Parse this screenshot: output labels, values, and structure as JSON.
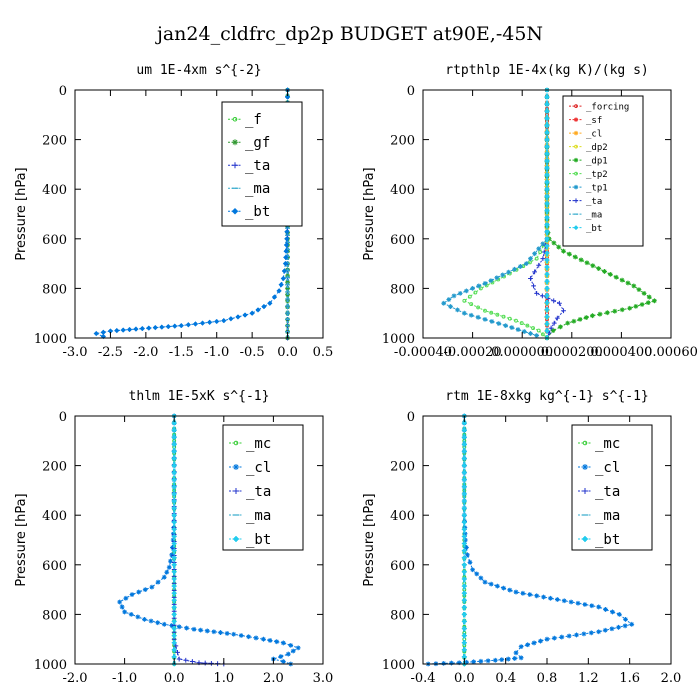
{
  "page": {
    "title": "jan24_cldfrc_dp2p  BUDGET at90E,-45N"
  },
  "chart_data": [
    {
      "type": "line",
      "title": "um   1E-4xm s^{-2}",
      "ylabel": "Pressure [hPa]",
      "xlim": [
        -3.0,
        0.5
      ],
      "ylim": [
        1000,
        0
      ],
      "xticks": [
        "-3.0",
        "-2.5",
        "-2.0",
        "-1.5",
        "-1.0",
        "-0.5",
        "0.0",
        "0.5"
      ],
      "yticks": [
        "0",
        "200",
        "400",
        "600",
        "800",
        "1000"
      ],
      "series": [
        {
          "name": "_f",
          "color": "#33cc33",
          "marker": "circle",
          "points": [
            [
              0,
              0
            ],
            [
              0,
              100
            ],
            [
              0,
              200
            ],
            [
              0,
              300
            ],
            [
              0,
              400
            ],
            [
              0,
              500
            ],
            [
              0,
              600
            ],
            [
              0,
              700
            ],
            [
              0,
              800
            ],
            [
              0,
              900
            ],
            [
              0,
              1000
            ]
          ]
        },
        {
          "name": "_gf",
          "color": "#339933",
          "marker": "star",
          "points": [
            [
              0,
              0
            ],
            [
              0,
              100
            ],
            [
              0,
              200
            ],
            [
              0,
              300
            ],
            [
              0,
              400
            ],
            [
              0,
              500
            ],
            [
              0,
              600
            ],
            [
              0,
              700
            ],
            [
              0,
              800
            ],
            [
              0,
              900
            ],
            [
              0,
              1000
            ]
          ]
        },
        {
          "name": "_ta",
          "color": "#2233cc",
          "marker": "plus",
          "points": [
            [
              0,
              0
            ],
            [
              0,
              500
            ],
            [
              0,
              900
            ],
            [
              0,
              1000
            ]
          ]
        },
        {
          "name": "_ma",
          "color": "#33aacc",
          "marker": "dash",
          "points": [
            [
              0,
              0
            ],
            [
              0,
              500
            ],
            [
              0,
              900
            ],
            [
              0,
              1000
            ]
          ]
        },
        {
          "name": "_bt",
          "color": "#0077dd",
          "marker": "diamond",
          "points": [
            [
              0,
              0
            ],
            [
              0,
              400
            ],
            [
              -0.01,
              600
            ],
            [
              -0.03,
              700
            ],
            [
              -0.06,
              760
            ],
            [
              -0.12,
              810
            ],
            [
              -0.25,
              860
            ],
            [
              -0.5,
              900
            ],
            [
              -0.9,
              930
            ],
            [
              -1.5,
              950
            ],
            [
              -2.05,
              962
            ],
            [
              -2.5,
              972
            ],
            [
              -2.7,
              982
            ],
            [
              -2.6,
              994
            ]
          ]
        }
      ]
    },
    {
      "type": "line",
      "title": "rtpthlp   1E-4x(kg K)/(kg s)",
      "ylabel": "Pressure [hPa]",
      "xlim": [
        -0.0006,
        0.0006
      ],
      "ylim": [
        1000,
        0
      ],
      "xticks": [
        "-0.00040",
        "-0.00020",
        "0.000000",
        "0.000200",
        "0.000400",
        "0.00060"
      ],
      "yticks": [
        "0",
        "200",
        "400",
        "600",
        "800",
        "1000"
      ],
      "series": [
        {
          "name": "_forcing",
          "color": "#dd2222",
          "marker": "circle",
          "points": [
            [
              0,
              0
            ],
            [
              0,
              100
            ],
            [
              0,
              200
            ],
            [
              0,
              300
            ],
            [
              0,
              400
            ],
            [
              0,
              500
            ],
            [
              0,
              600
            ],
            [
              0,
              700
            ],
            [
              0,
              800
            ],
            [
              0,
              900
            ],
            [
              0,
              1000
            ]
          ]
        },
        {
          "name": "_sf",
          "color": "#ee3333",
          "marker": "star",
          "points": [
            [
              0,
              0
            ],
            [
              0,
              500
            ],
            [
              0,
              1000
            ]
          ]
        },
        {
          "name": "_cl",
          "color": "#ffaa22",
          "marker": "star",
          "points": [
            [
              0,
              0
            ],
            [
              0,
              500
            ],
            [
              0,
              1000
            ]
          ]
        },
        {
          "name": "_dp2",
          "color": "#dddd22",
          "marker": "circle",
          "points": [
            [
              0,
              0
            ],
            [
              0,
              500
            ],
            [
              0,
              1000
            ]
          ]
        },
        {
          "name": "_dp1",
          "color": "#22aa22",
          "marker": "star",
          "points": [
            [
              0,
              0
            ],
            [
              0,
              550
            ],
            [
              1e-05,
              600
            ],
            [
              8e-05,
              650
            ],
            [
              0.00025,
              720
            ],
            [
              0.00042,
              790
            ],
            [
              0.00052,
              850
            ],
            [
              0.0004,
              880
            ],
            [
              0.00022,
              910
            ],
            [
              0.0001,
              940
            ],
            [
              3e-05,
              970
            ],
            [
              0,
              1000
            ]
          ]
        },
        {
          "name": "_tp2",
          "color": "#55dd55",
          "marker": "circle",
          "points": [
            [
              0,
              0
            ],
            [
              0,
              600
            ],
            [
              -5e-05,
              680
            ],
            [
              -0.00018,
              740
            ],
            [
              -0.00032,
              800
            ],
            [
              -0.0004,
              850
            ],
            [
              -0.0003,
              890
            ],
            [
              -0.00015,
              930
            ],
            [
              -4e-05,
              970
            ],
            [
              0,
              1000
            ]
          ]
        },
        {
          "name": "_tp1",
          "color": "#2299cc",
          "marker": "star",
          "points": [
            [
              0,
              0
            ],
            [
              0,
              600
            ],
            [
              -0.0001,
              700
            ],
            [
              -0.0003,
              780
            ],
            [
              -0.00045,
              830
            ],
            [
              -0.0005,
              860
            ],
            [
              -0.0004,
              900
            ],
            [
              -0.0002,
              950
            ],
            [
              -5e-05,
              990
            ]
          ]
        },
        {
          "name": "_ta",
          "color": "#2233cc",
          "marker": "plus",
          "points": [
            [
              0,
              0
            ],
            [
              0,
              600
            ],
            [
              -2e-05,
              680
            ],
            [
              -8e-05,
              760
            ],
            [
              -5e-05,
              820
            ],
            [
              6e-05,
              860
            ],
            [
              8e-05,
              890
            ],
            [
              5e-05,
              920
            ],
            [
              2e-05,
              960
            ],
            [
              0,
              1000
            ]
          ]
        },
        {
          "name": "_ma",
          "color": "#33aacc",
          "marker": "dash",
          "points": [
            [
              0,
              0
            ],
            [
              0,
              1000
            ]
          ]
        },
        {
          "name": "_bt",
          "color": "#22ccee",
          "marker": "diamond",
          "points": [
            [
              0,
              0
            ],
            [
              0,
              1000
            ]
          ]
        }
      ]
    },
    {
      "type": "line",
      "title": "thlm   1E-5xK s^{-1}",
      "ylabel": "Pressure [hPa]",
      "xlim": [
        -2.0,
        3.0
      ],
      "ylim": [
        1000,
        0
      ],
      "xticks": [
        "-2.0",
        "-1.0",
        "0.0",
        "1.0",
        "2.0",
        "3.0"
      ],
      "yticks": [
        "0",
        "200",
        "400",
        "600",
        "800",
        "1000"
      ],
      "series": [
        {
          "name": "_mc",
          "color": "#33cc33",
          "marker": "circle",
          "points": [
            [
              0,
              0
            ],
            [
              0,
              100
            ],
            [
              0,
              200
            ],
            [
              0,
              300
            ],
            [
              0,
              400
            ],
            [
              0,
              500
            ],
            [
              0,
              600
            ],
            [
              0,
              700
            ],
            [
              0,
              800
            ],
            [
              0,
              900
            ],
            [
              0,
              1000
            ]
          ]
        },
        {
          "name": "_cl",
          "color": "#0077dd",
          "marker": "star",
          "points": [
            [
              0,
              0
            ],
            [
              0,
              400
            ],
            [
              -0.02,
              500
            ],
            [
              -0.05,
              560
            ],
            [
              -0.1,
              610
            ],
            [
              -0.2,
              650
            ],
            [
              -0.45,
              690
            ],
            [
              -0.85,
              720
            ],
            [
              -1.1,
              750
            ],
            [
              -1.0,
              790
            ],
            [
              -0.6,
              820
            ],
            [
              -0.2,
              840
            ],
            [
              0.4,
              860
            ],
            [
              1.2,
              880
            ],
            [
              1.8,
              900
            ],
            [
              2.2,
              915
            ],
            [
              2.5,
              935
            ],
            [
              2.3,
              960
            ],
            [
              2.0,
              980
            ],
            [
              2.2,
              990
            ],
            [
              2.35,
              1000
            ]
          ]
        },
        {
          "name": "_ta",
          "color": "#2233cc",
          "marker": "plus",
          "points": [
            [
              0,
              0
            ],
            [
              0,
              900
            ],
            [
              0.1,
              980
            ],
            [
              0.5,
              995
            ],
            [
              1.0,
              1000
            ]
          ]
        },
        {
          "name": "_ma",
          "color": "#33aacc",
          "marker": "dash",
          "points": [
            [
              0,
              0
            ],
            [
              0,
              1000
            ]
          ]
        },
        {
          "name": "_bt",
          "color": "#22ccee",
          "marker": "diamond",
          "points": [
            [
              0,
              0
            ],
            [
              0,
              1000
            ]
          ]
        }
      ]
    },
    {
      "type": "line",
      "title": "rtm   1E-8xkg kg^{-1} s^{-1}",
      "ylabel": "Pressure [hPa]",
      "xlim": [
        -0.4,
        2.0
      ],
      "ylim": [
        1000,
        0
      ],
      "xticks": [
        "-0.4",
        "0.0",
        "0.4",
        "0.8",
        "1.2",
        "1.6",
        "2.0"
      ],
      "yticks": [
        "0",
        "200",
        "400",
        "600",
        "800",
        "1000"
      ],
      "series": [
        {
          "name": "_mc",
          "color": "#33cc33",
          "marker": "circle",
          "points": [
            [
              0,
              0
            ],
            [
              0,
              100
            ],
            [
              0,
              200
            ],
            [
              0,
              300
            ],
            [
              0,
              400
            ],
            [
              0,
              500
            ],
            [
              0,
              600
            ],
            [
              0,
              700
            ],
            [
              0,
              800
            ],
            [
              0,
              900
            ],
            [
              0,
              1000
            ]
          ]
        },
        {
          "name": "_cl",
          "color": "#0077dd",
          "marker": "star",
          "points": [
            [
              0,
              0
            ],
            [
              0,
              400
            ],
            [
              0.01,
              500
            ],
            [
              0.03,
              560
            ],
            [
              0.08,
              620
            ],
            [
              0.2,
              670
            ],
            [
              0.5,
              710
            ],
            [
              0.9,
              740
            ],
            [
              1.3,
              770
            ],
            [
              1.5,
              800
            ],
            [
              1.62,
              840
            ],
            [
              1.3,
              870
            ],
            [
              0.8,
              900
            ],
            [
              0.55,
              930
            ],
            [
              0.5,
              955
            ],
            [
              0.55,
              975
            ],
            [
              0.3,
              985
            ],
            [
              -0.05,
              995
            ],
            [
              -0.35,
              1000
            ]
          ]
        },
        {
          "name": "_ta",
          "color": "#2233cc",
          "marker": "plus",
          "points": [
            [
              0,
              0
            ],
            [
              0,
              1000
            ]
          ]
        },
        {
          "name": "_ma",
          "color": "#33aacc",
          "marker": "dash",
          "points": [
            [
              0,
              0
            ],
            [
              0,
              1000
            ]
          ]
        },
        {
          "name": "_bt",
          "color": "#22ccee",
          "marker": "diamond",
          "points": [
            [
              0,
              0
            ],
            [
              0,
              1000
            ]
          ]
        }
      ]
    }
  ]
}
